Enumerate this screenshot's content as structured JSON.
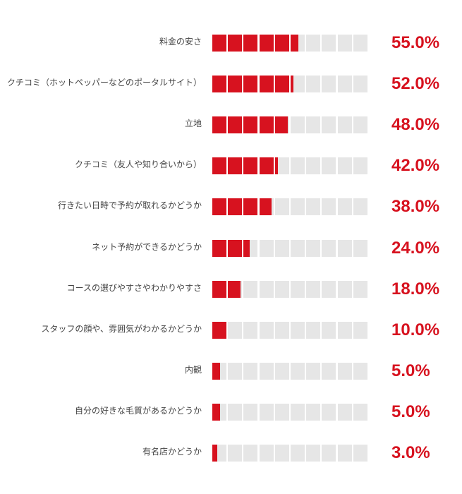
{
  "chart_data": {
    "type": "bar",
    "orientation": "horizontal",
    "colors": {
      "filled": "#d7121f",
      "empty": "#e6e6e6",
      "label_text": "#444444",
      "value_text": "#d7121f"
    },
    "categories": [
      "料金の安さ",
      "クチコミ（ホットペッパーなどのポータルサイト）",
      "立地",
      "クチコミ（友人や知り合いから）",
      "行きたい日時で予約が取れるかどうか",
      "ネット予約ができるかどうか",
      "コースの選びやすさやわかりやすさ",
      "スタッフの顔や、雰囲気がわかるかどうか",
      "内観",
      "自分の好きな毛質があるかどうか",
      "有名店かどうか"
    ],
    "values": [
      55.0,
      52.0,
      48.0,
      42.0,
      38.0,
      24.0,
      18.0,
      10.0,
      5.0,
      5.0,
      3.0
    ],
    "value_labels": [
      "55.0%",
      "52.0%",
      "48.0%",
      "42.0%",
      "38.0%",
      "24.0%",
      "18.0%",
      "10.0%",
      "5.0%",
      "5.0%",
      "3.0%"
    ],
    "xlim": [
      0,
      100
    ],
    "unit": "%",
    "grid": false,
    "legend": "none"
  }
}
